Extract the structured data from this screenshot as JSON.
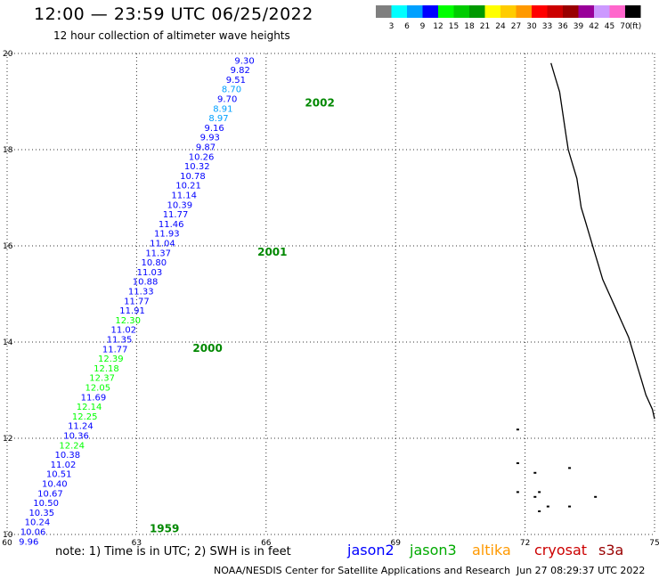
{
  "header": {
    "title": "12:00 — 23:59 UTC 06/25/2022",
    "subtitle": "12 hour collection of altimeter wave heights"
  },
  "color_scale": {
    "unit": "(ft)",
    "bins": [
      {
        "label": "3",
        "color": "#7f7f7f"
      },
      {
        "label": "6",
        "color": "#00ffff"
      },
      {
        "label": "9",
        "color": "#00a0ff"
      },
      {
        "label": "12",
        "color": "#0000ff"
      },
      {
        "label": "15",
        "color": "#00ff00"
      },
      {
        "label": "18",
        "color": "#00cc00"
      },
      {
        "label": "21",
        "color": "#009900"
      },
      {
        "label": "24",
        "color": "#ffff00"
      },
      {
        "label": "27",
        "color": "#ffcc00"
      },
      {
        "label": "30",
        "color": "#ff9900"
      },
      {
        "label": "33",
        "color": "#ff0000"
      },
      {
        "label": "36",
        "color": "#cc0000"
      },
      {
        "label": "39",
        "color": "#990000"
      },
      {
        "label": "42",
        "color": "#990099"
      },
      {
        "label": "45",
        "color": "#cc99ff"
      },
      {
        "label": "70",
        "color": "#ff66cc"
      },
      {
        "label": "",
        "color": "#000000"
      }
    ]
  },
  "map": {
    "lat_range": [
      10,
      20
    ],
    "lon_range": [
      60,
      75
    ],
    "lat_ticks": [
      "10",
      "12",
      "14",
      "16",
      "18",
      "20"
    ],
    "lon_ticks": [
      "60",
      "63",
      "66",
      "69",
      "72",
      "75"
    ],
    "grid": "dotted"
  },
  "chart_data": {
    "type": "scatter",
    "track_labels": [
      {
        "text": "2002",
        "lon": 66.9,
        "lat": 18.9
      },
      {
        "text": "2001",
        "lon": 65.8,
        "lat": 15.8
      },
      {
        "text": "2000",
        "lon": 64.3,
        "lat": 13.8
      },
      {
        "text": "1959",
        "lon": 63.3,
        "lat": 10.05
      }
    ],
    "points": [
      {
        "value": "9.30",
        "lon": 65.5,
        "lat": 19.79,
        "color": "#0000ff"
      },
      {
        "value": "9.82",
        "lon": 65.4,
        "lat": 19.59,
        "color": "#0000ff"
      },
      {
        "value": "9.51",
        "lon": 65.3,
        "lat": 19.39,
        "color": "#0000ff"
      },
      {
        "value": "8.70",
        "lon": 65.2,
        "lat": 19.19,
        "color": "#00a0ff"
      },
      {
        "value": "9.70",
        "lon": 65.1,
        "lat": 18.99,
        "color": "#0000ff"
      },
      {
        "value": "8.91",
        "lon": 65.0,
        "lat": 18.79,
        "color": "#00a0ff"
      },
      {
        "value": "8.97",
        "lon": 64.9,
        "lat": 18.59,
        "color": "#00a0ff"
      },
      {
        "value": "9.16",
        "lon": 64.8,
        "lat": 18.39,
        "color": "#0000ff"
      },
      {
        "value": "9.93",
        "lon": 64.7,
        "lat": 18.19,
        "color": "#0000ff"
      },
      {
        "value": "9.87",
        "lon": 64.6,
        "lat": 17.99,
        "color": "#0000ff"
      },
      {
        "value": "10.26",
        "lon": 64.5,
        "lat": 17.79,
        "color": "#0000ff"
      },
      {
        "value": "10.32",
        "lon": 64.4,
        "lat": 17.59,
        "color": "#0000ff"
      },
      {
        "value": "10.78",
        "lon": 64.3,
        "lat": 17.39,
        "color": "#0000ff"
      },
      {
        "value": "10.21",
        "lon": 64.2,
        "lat": 17.19,
        "color": "#0000ff"
      },
      {
        "value": "11.14",
        "lon": 64.1,
        "lat": 16.99,
        "color": "#0000ff"
      },
      {
        "value": "10.39",
        "lon": 64.0,
        "lat": 16.79,
        "color": "#0000ff"
      },
      {
        "value": "11.77",
        "lon": 63.9,
        "lat": 16.59,
        "color": "#0000ff"
      },
      {
        "value": "11.46",
        "lon": 63.8,
        "lat": 16.39,
        "color": "#0000ff"
      },
      {
        "value": "11.93",
        "lon": 63.7,
        "lat": 16.19,
        "color": "#0000ff"
      },
      {
        "value": "11.04",
        "lon": 63.6,
        "lat": 15.99,
        "color": "#0000ff"
      },
      {
        "value": "11.37",
        "lon": 63.5,
        "lat": 15.79,
        "color": "#0000ff"
      },
      {
        "value": "10.80",
        "lon": 63.4,
        "lat": 15.59,
        "color": "#0000ff"
      },
      {
        "value": "11.03",
        "lon": 63.3,
        "lat": 15.39,
        "color": "#0000ff"
      },
      {
        "value": "10.88",
        "lon": 63.2,
        "lat": 15.19,
        "color": "#0000ff"
      },
      {
        "value": "11.33",
        "lon": 63.1,
        "lat": 14.99,
        "color": "#0000ff"
      },
      {
        "value": "11.77",
        "lon": 63.0,
        "lat": 14.79,
        "color": "#0000ff"
      },
      {
        "value": "11.91",
        "lon": 62.9,
        "lat": 14.59,
        "color": "#0000ff"
      },
      {
        "value": "12.30",
        "lon": 62.8,
        "lat": 14.39,
        "color": "#00ff00"
      },
      {
        "value": "11.02",
        "lon": 62.7,
        "lat": 14.19,
        "color": "#0000ff"
      },
      {
        "value": "11.35",
        "lon": 62.6,
        "lat": 13.99,
        "color": "#0000ff"
      },
      {
        "value": "11.77",
        "lon": 62.5,
        "lat": 13.79,
        "color": "#0000ff"
      },
      {
        "value": "12.39",
        "lon": 62.4,
        "lat": 13.59,
        "color": "#00ff00"
      },
      {
        "value": "12.18",
        "lon": 62.3,
        "lat": 13.39,
        "color": "#00ff00"
      },
      {
        "value": "12.37",
        "lon": 62.2,
        "lat": 13.19,
        "color": "#00ff00"
      },
      {
        "value": "12.05",
        "lon": 62.1,
        "lat": 12.99,
        "color": "#00ff00"
      },
      {
        "value": "11.69",
        "lon": 62.0,
        "lat": 12.79,
        "color": "#0000ff"
      },
      {
        "value": "12.14",
        "lon": 61.9,
        "lat": 12.59,
        "color": "#00ff00"
      },
      {
        "value": "12.25",
        "lon": 61.8,
        "lat": 12.39,
        "color": "#00ff00"
      },
      {
        "value": "11.24",
        "lon": 61.7,
        "lat": 12.19,
        "color": "#0000ff"
      },
      {
        "value": "10.36",
        "lon": 61.6,
        "lat": 11.99,
        "color": "#0000ff"
      },
      {
        "value": "12.24",
        "lon": 61.5,
        "lat": 11.79,
        "color": "#00ff00"
      },
      {
        "value": "10.38",
        "lon": 61.4,
        "lat": 11.59,
        "color": "#0000ff"
      },
      {
        "value": "11.02",
        "lon": 61.3,
        "lat": 11.39,
        "color": "#0000ff"
      },
      {
        "value": "10.51",
        "lon": 61.2,
        "lat": 11.19,
        "color": "#0000ff"
      },
      {
        "value": "10.40",
        "lon": 61.1,
        "lat": 10.99,
        "color": "#0000ff"
      },
      {
        "value": "10.67",
        "lon": 61.0,
        "lat": 10.79,
        "color": "#0000ff"
      },
      {
        "value": "10.50",
        "lon": 60.9,
        "lat": 10.59,
        "color": "#0000ff"
      },
      {
        "value": "10.35",
        "lon": 60.8,
        "lat": 10.39,
        "color": "#0000ff"
      },
      {
        "value": "10.24",
        "lon": 60.7,
        "lat": 10.19,
        "color": "#0000ff"
      },
      {
        "value": "10.06",
        "lon": 60.6,
        "lat": 9.99,
        "color": "#0000ff"
      },
      {
        "value": "9.96",
        "lon": 60.5,
        "lat": 9.79,
        "color": "#0000ff"
      }
    ]
  },
  "coast": {
    "mainland": [
      [
        72.6,
        19.8
      ],
      [
        72.7,
        19.5
      ],
      [
        72.8,
        19.2
      ],
      [
        72.85,
        18.9
      ],
      [
        72.9,
        18.6
      ],
      [
        72.95,
        18.3
      ],
      [
        73.0,
        18.0
      ],
      [
        73.1,
        17.7
      ],
      [
        73.2,
        17.4
      ],
      [
        73.25,
        17.1
      ],
      [
        73.3,
        16.8
      ],
      [
        73.4,
        16.5
      ],
      [
        73.5,
        16.2
      ],
      [
        73.6,
        15.9
      ],
      [
        73.7,
        15.6
      ],
      [
        73.8,
        15.3
      ],
      [
        73.95,
        15.0
      ],
      [
        74.1,
        14.7
      ],
      [
        74.25,
        14.4
      ],
      [
        74.4,
        14.1
      ],
      [
        74.5,
        13.8
      ],
      [
        74.6,
        13.5
      ],
      [
        74.7,
        13.2
      ],
      [
        74.8,
        12.9
      ],
      [
        74.95,
        12.6
      ],
      [
        75.0,
        12.4
      ]
    ],
    "islands": [
      [
        71.8,
        12.2
      ],
      [
        71.8,
        11.5
      ],
      [
        72.2,
        11.3
      ],
      [
        73.0,
        11.4
      ],
      [
        72.2,
        10.8
      ],
      [
        72.3,
        10.9
      ],
      [
        73.6,
        10.8
      ],
      [
        71.8,
        10.9
      ],
      [
        72.3,
        10.5
      ],
      [
        73.0,
        10.6
      ],
      [
        72.5,
        10.6
      ]
    ]
  },
  "legend": {
    "note": "note:  1) Time is in UTC;  2) SWH is in feet",
    "satellites": [
      {
        "name": "jason2",
        "color": "#0000ff"
      },
      {
        "name": "jason3",
        "color": "#00aa00"
      },
      {
        "name": "altika",
        "color": "#ff9900"
      },
      {
        "name": "cryosat",
        "color": "#cc0000"
      },
      {
        "name": "s3a",
        "color": "#990000"
      }
    ]
  },
  "footer": {
    "credit": "NOAA/NESDIS Center for Satellite Applications and Research",
    "timestamp": "Jun 27 08:29:37 UTC 2022"
  }
}
